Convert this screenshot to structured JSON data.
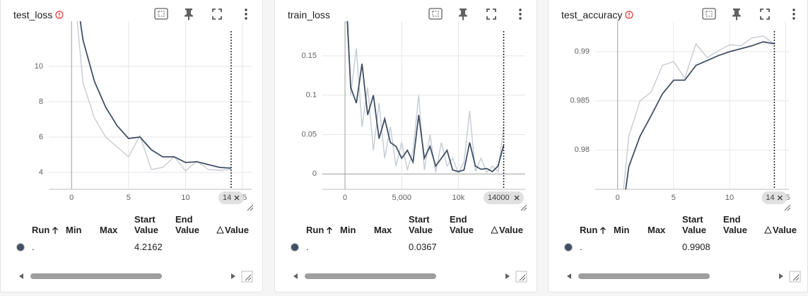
{
  "cards": [
    {
      "title": "test_loss",
      "info_icon": true,
      "chart_data": {
        "type": "line",
        "x": [
          0,
          1,
          2,
          3,
          4,
          5,
          6,
          7,
          8,
          9,
          10,
          11,
          12,
          13,
          14
        ],
        "xlim": [
          -2,
          15.8
        ],
        "ylim": [
          3.04,
          12.56
        ],
        "xticks": [
          0,
          5,
          10,
          15
        ],
        "yticks": [
          4,
          6,
          8,
          10
        ],
        "grid": true,
        "marker": 14,
        "series": [
          {
            "color": "#c8ccd4",
            "values": [
              16,
              9.08,
              7.08,
              6.0,
              5.44,
              4.88,
              6.08,
              4.16,
              4.28,
              4.88,
              4.08,
              4.64,
              4.16,
              4.12,
              4.16
            ]
          },
          {
            "color": "#425066",
            "values": [
              16,
              11.5,
              9.16,
              7.68,
              6.64,
              5.92,
              6.0,
              5.28,
              4.88,
              4.88,
              4.56,
              4.6,
              4.44,
              4.28,
              4.24
            ]
          }
        ]
      },
      "table": {
        "columns": [
          "Run",
          "Min",
          "Max",
          "Start Value",
          "End Value",
          "Value"
        ],
        "rows": [
          {
            "run": ".",
            "start_value": 4.2162
          }
        ]
      }
    },
    {
      "title": "train_loss",
      "info_icon": false,
      "chart_data": {
        "type": "line",
        "x": [
          0,
          500,
          1000,
          1500,
          2000,
          2500,
          3000,
          3500,
          4000,
          4500,
          5000,
          5500,
          6000,
          6500,
          7000,
          7500,
          8000,
          8500,
          9000,
          9500,
          10000,
          10500,
          11000,
          11500,
          12000,
          12500,
          13000,
          13500,
          14000
        ],
        "xlim": [
          -2000,
          15900
        ],
        "ylim": [
          -0.0195,
          0.194
        ],
        "xticks": [
          0,
          {
            "value": 5000,
            "label": "5,000"
          },
          {
            "value": 10000,
            "label": "10k"
          }
        ],
        "yticks": [
          0,
          0.05,
          0.1,
          0.15
        ],
        "grid": true,
        "marker": 14000,
        "series": [
          {
            "color": "#c5cbd6",
            "values": [
              0.3,
              0.1,
              0.16,
              0.06,
              0.11,
              0.03,
              0.09,
              0.02,
              0.06,
              0.01,
              0.04,
              0.005,
              0.03,
              0.1,
              0.005,
              0.05,
              0.002,
              0.04,
              0.01,
              0.02,
              0.001,
              0.015,
              0.08,
              0.003,
              0.02,
              0.002,
              0.01,
              0.003,
              0.06
            ]
          },
          {
            "color": "#425066",
            "values": [
              0.25,
              0.11,
              0.09,
              0.14,
              0.075,
              0.1,
              0.045,
              0.07,
              0.04,
              0.035,
              0.02,
              0.03,
              0.015,
              0.075,
              0.02,
              0.035,
              0.01,
              0.02,
              0.03,
              0.005,
              0.003,
              0.005,
              0.04,
              0.01,
              0.006,
              0.007,
              0.003,
              0.01,
              0.0367
            ]
          }
        ]
      },
      "table": {
        "columns": [
          "Run",
          "Min",
          "Max",
          "Start Value",
          "End Value",
          "Value"
        ],
        "rows": [
          {
            "run": ".",
            "start_value": 0.0367
          }
        ]
      }
    },
    {
      "title": "test_accuracy",
      "info_icon": true,
      "chart_data": {
        "type": "line",
        "x": [
          0,
          1,
          2,
          3,
          4,
          5,
          6,
          7,
          8,
          9,
          10,
          11,
          12,
          13,
          14
        ],
        "xlim": [
          -2,
          15.3
        ],
        "ylim": [
          0.976,
          0.9931
        ],
        "xticks": [
          0,
          5,
          10,
          15
        ],
        "yticks": [
          0.98,
          0.985,
          0.99
        ],
        "grid": true,
        "marker": 14,
        "series": [
          {
            "color": "#c8ccd4",
            "values": [
              0.97,
              0.9814,
              0.985,
              0.9859,
              0.9886,
              0.989,
              0.9873,
              0.9908,
              0.9894,
              0.9901,
              0.9907,
              0.9906,
              0.9914,
              0.9916,
              0.9908
            ]
          },
          {
            "color": "#425066",
            "values": [
              0.97,
              0.9783,
              0.9814,
              0.9835,
              0.9857,
              0.9871,
              0.9871,
              0.9886,
              0.9891,
              0.9896,
              0.99,
              0.9903,
              0.9906,
              0.991,
              0.9908
            ]
          }
        ]
      },
      "table": {
        "columns": [
          "Run",
          "Min",
          "Max",
          "Start Value",
          "End Value",
          "Value"
        ],
        "rows": [
          {
            "run": ".",
            "start_value": 0.9908
          }
        ]
      }
    }
  ]
}
